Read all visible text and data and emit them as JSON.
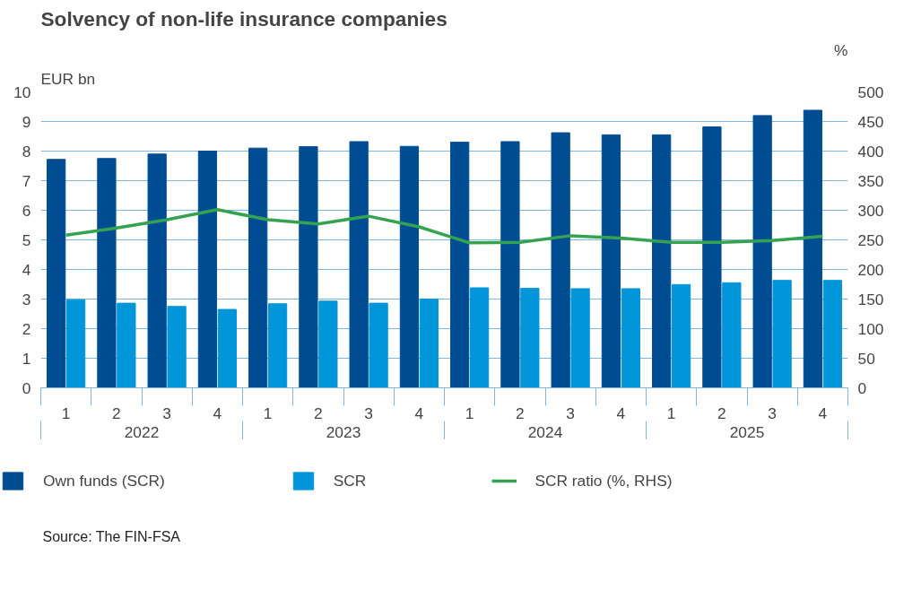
{
  "chart_data": {
    "type": "bar",
    "title": "Solvency of non-life insurance companies",
    "ylabel": "EUR bn",
    "y2label": "%",
    "categories": [
      "1",
      "2",
      "3",
      "4",
      "1",
      "2",
      "3",
      "4",
      "1",
      "2",
      "3",
      "4",
      "1",
      "2",
      "3",
      "4"
    ],
    "series": [
      {
        "name": "Own funds (SCR)",
        "color": "#004d93",
        "values": [
          7.72,
          7.75,
          7.9,
          8.0,
          8.1,
          8.15,
          8.32,
          8.16,
          8.3,
          8.32,
          8.62,
          8.55,
          8.55,
          8.82,
          9.2,
          9.38
        ]
      },
      {
        "name": "SCR",
        "color": "#0096d9",
        "values": [
          2.98,
          2.86,
          2.75,
          2.65,
          2.84,
          2.93,
          2.86,
          3.0,
          3.38,
          3.36,
          3.35,
          3.35,
          3.49,
          3.55,
          3.63,
          3.63
        ]
      },
      {
        "name": "SCR ratio (%, RHS)",
        "type": "line",
        "axis": "y2",
        "color": "#33a352",
        "values": [
          258,
          270,
          284,
          301,
          284,
          277,
          290,
          272,
          245,
          246,
          257,
          253,
          246,
          246,
          249,
          256
        ]
      }
    ],
    "ylim": [
      0,
      10
    ],
    "yticks": [
      0,
      1,
      2,
      3,
      4,
      5,
      6,
      7,
      8,
      9,
      10
    ],
    "y2lim": [
      0,
      500
    ],
    "y2ticks": [
      0,
      50,
      100,
      150,
      200,
      250,
      300,
      350,
      400,
      450,
      500
    ],
    "grid": "y",
    "legend": "bottom",
    "annotations": [
      "2022",
      "2023",
      "2024",
      "2025",
      "Source: The FIN-FSA"
    ]
  }
}
